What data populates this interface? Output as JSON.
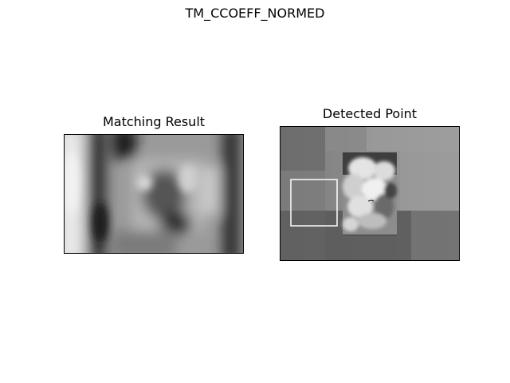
{
  "figure": {
    "suptitle": "TM_CCOEFF_NORMED"
  },
  "subplots": [
    {
      "title": "Matching Result",
      "content": "grayscale heatmap of template matching scores"
    },
    {
      "title": "Detected Point",
      "content": "grayscale image with detected match rectangle"
    }
  ],
  "colors": {
    "background": "#ffffff",
    "axes_border": "#000000",
    "match_rectangle": "#ffffff"
  }
}
